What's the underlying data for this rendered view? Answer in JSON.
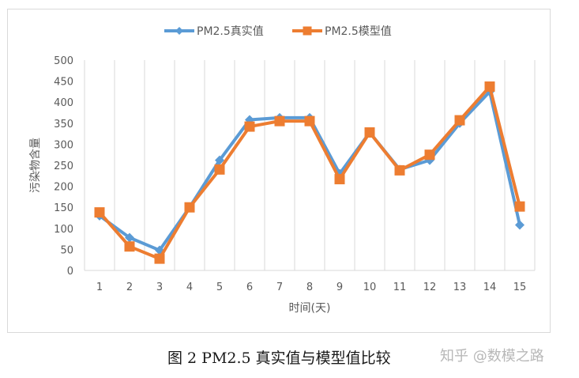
{
  "caption": "图 2 PM2.5 真实值与模型值比较",
  "watermark": "知乎 @数模之路",
  "colors": {
    "real": "#5b9bd5",
    "model": "#ed7d31",
    "grid": "#d9d9d9",
    "axis_text": "#595959"
  },
  "chart_data": {
    "type": "line",
    "title": "",
    "xlabel": "时间(天)",
    "ylabel": "污染物含量",
    "ylim": [
      0,
      500
    ],
    "y_ticks": [
      0,
      50,
      100,
      150,
      200,
      250,
      300,
      350,
      400,
      450,
      500
    ],
    "grid": "vertical",
    "legend_position": "top",
    "categories": [
      "1",
      "2",
      "3",
      "4",
      "5",
      "6",
      "7",
      "8",
      "9",
      "10",
      "11",
      "12",
      "13",
      "14",
      "15"
    ],
    "series": [
      {
        "name": "PM2.5真实值",
        "marker": "diamond",
        "color": "#5b9bd5",
        "values": [
          130,
          78,
          48,
          150,
          262,
          358,
          363,
          363,
          230,
          328,
          240,
          262,
          350,
          425,
          108
        ]
      },
      {
        "name": "PM2.5模型值",
        "marker": "square",
        "color": "#ed7d31",
        "values": [
          138,
          57,
          28,
          150,
          240,
          342,
          355,
          355,
          217,
          328,
          238,
          275,
          357,
          437,
          152
        ]
      }
    ]
  }
}
